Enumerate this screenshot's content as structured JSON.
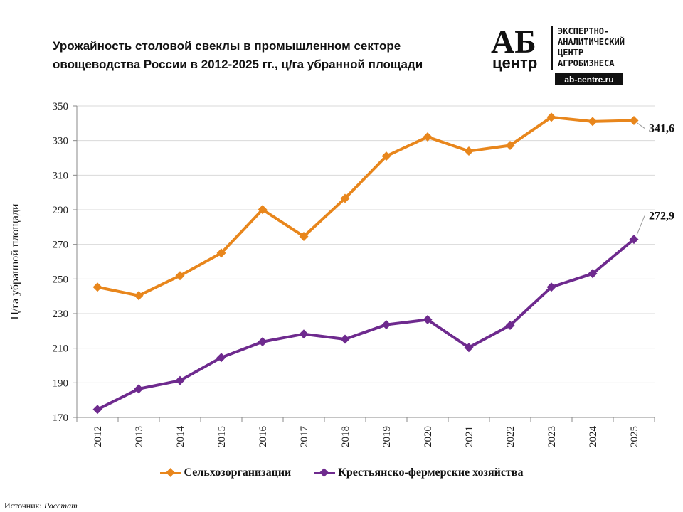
{
  "title_lines": [
    "Урожайность столовой свеклы в промышленном секторе",
    "овощеводства России в 2012-2025 гг., ц/га убранной площади"
  ],
  "logo": {
    "mark": "АБ",
    "mark_sub": "центр",
    "text_lines": [
      "ЭКСПЕРТНО-",
      "АНАЛИТИЧЕСКИЙ",
      "ЦЕНТР",
      "АГРОБИЗНЕСА"
    ],
    "url": "ab-centre.ru"
  },
  "source": {
    "label": "Источник:",
    "value": "Росстат"
  },
  "colors": {
    "series1": "#E8861C",
    "series2": "#6E2A8E",
    "grid": "#d9d9d9",
    "axis": "#888888"
  },
  "chart_data": {
    "type": "line",
    "x": [
      "2012",
      "2013",
      "2014",
      "2015",
      "2016",
      "2017",
      "2018",
      "2019",
      "2020",
      "2021",
      "2022",
      "2023",
      "2024",
      "2025"
    ],
    "series": [
      {
        "name": "Сельхозорганизации",
        "values": [
          245.3,
          240.4,
          251.9,
          265.0,
          290.1,
          274.6,
          296.6,
          321.0,
          332.1,
          323.9,
          327.2,
          343.5,
          341.0,
          341.6
        ]
      },
      {
        "name": "Крестьянско-фермерские хозяйства",
        "values": [
          174.6,
          186.5,
          191.3,
          204.6,
          213.7,
          218.2,
          215.2,
          223.6,
          226.5,
          210.4,
          223.2,
          245.3,
          253.1,
          272.9
        ]
      }
    ],
    "data_labels": [
      "341,6",
      "272,9"
    ],
    "ylabel": "Ц/га убранной площади",
    "ylim": [
      170,
      350
    ],
    "yticks": [
      170,
      190,
      210,
      230,
      250,
      270,
      290,
      310,
      330,
      350
    ],
    "grid": true,
    "legend": "bottom"
  }
}
